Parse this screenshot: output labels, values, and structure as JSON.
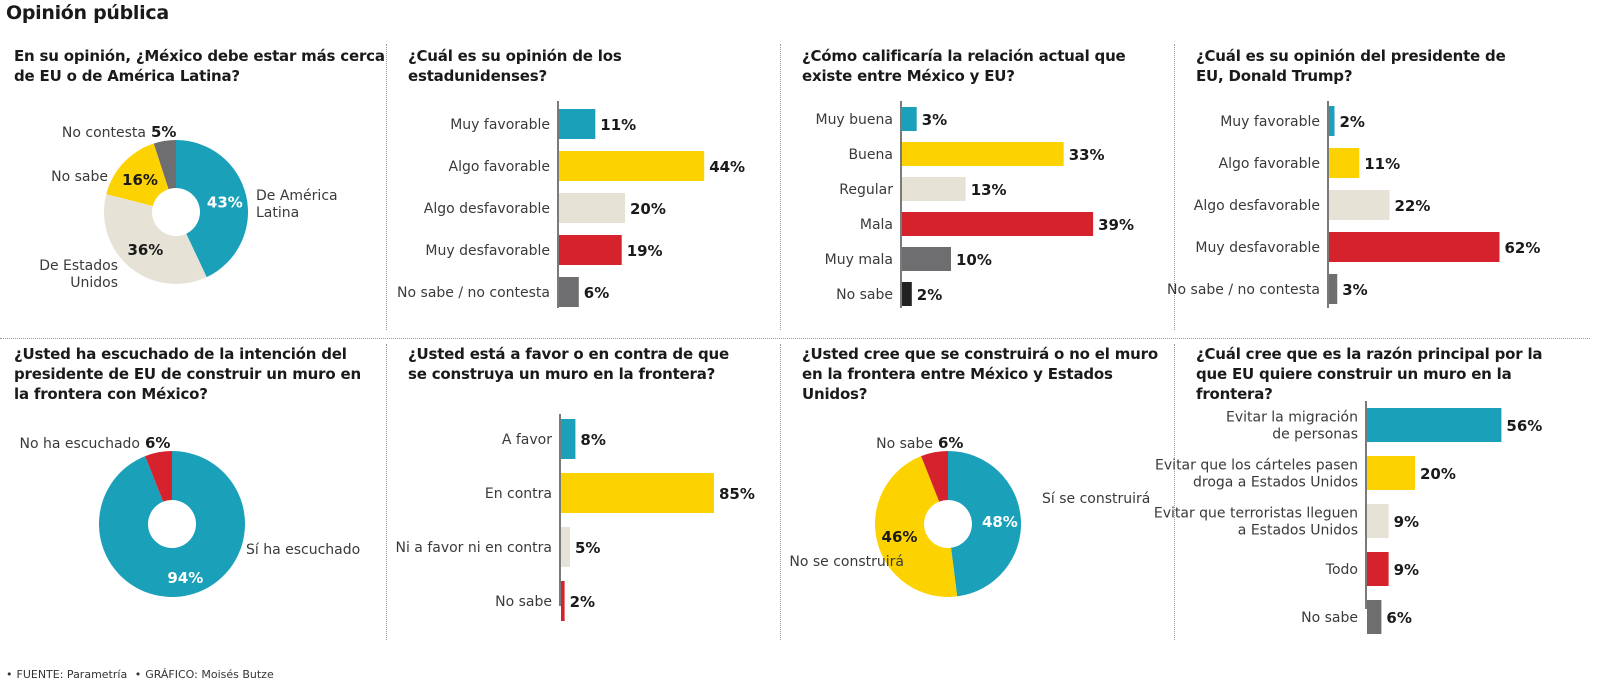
{
  "title": "Opinión pública",
  "footer": {
    "source": "FUENTE: Parametría",
    "graphic": "GRÁFICO: Moisés Butze"
  },
  "colors": {
    "teal": "#1aa0b8",
    "yellow": "#fcd300",
    "beige": "#e6e3d6",
    "red": "#d5222c",
    "gray": "#6e6e70",
    "black": "#222222"
  },
  "chart_data": [
    {
      "id": "p1",
      "type": "pie",
      "title": "En su opinión, ¿México debe estar más cerca de EU o de América Latina?",
      "slices": [
        {
          "label": "De América Latina",
          "value": 43,
          "display": "43%",
          "color": "#1aa0b8"
        },
        {
          "label": "De Estados Unidos",
          "value": 36,
          "display": "36%",
          "color": "#e6e3d6"
        },
        {
          "label": "No sabe",
          "value": 16,
          "display": "16%",
          "color": "#fcd300"
        },
        {
          "label": "No contesta",
          "value": 5,
          "display": "5%",
          "color": "#6e6e70"
        }
      ]
    },
    {
      "id": "p2",
      "type": "bar",
      "title": "¿Cuál es su opinión de los estadunidenses?",
      "categories": [
        "Muy favorable",
        "Algo favorable",
        "Algo desfavorable",
        "Muy desfavorable",
        "No sabe / no contesta"
      ],
      "values": [
        11,
        44,
        20,
        19,
        6
      ],
      "display": [
        "11%",
        "44%",
        "20%",
        "19%",
        "6%"
      ],
      "colors": [
        "#1aa0b8",
        "#fcd300",
        "#e6e3d6",
        "#d5222c",
        "#6e6e70"
      ]
    },
    {
      "id": "p3",
      "type": "bar",
      "title": "¿Cómo calificaría la relación actual que existe entre México y EU?",
      "categories": [
        "Muy buena",
        "Buena",
        "Regular",
        "Mala",
        "Muy mala",
        "No sabe"
      ],
      "values": [
        3,
        33,
        13,
        39,
        10,
        2
      ],
      "display": [
        "3%",
        "33%",
        "13%",
        "39%",
        "10%",
        "2%"
      ],
      "colors": [
        "#1aa0b8",
        "#fcd300",
        "#e6e3d6",
        "#d5222c",
        "#6e6e70",
        "#222222"
      ]
    },
    {
      "id": "p4",
      "type": "bar",
      "title": "¿Cuál es su opinión del presidente de EU, Donald Trump?",
      "categories": [
        "Muy favorable",
        "Algo favorable",
        "Algo desfavorable",
        "Muy desfavorable",
        "No sabe / no contesta"
      ],
      "values": [
        2,
        11,
        22,
        62,
        3
      ],
      "display": [
        "2%",
        "11%",
        "22%",
        "62%",
        "3%"
      ],
      "colors": [
        "#1aa0b8",
        "#fcd300",
        "#e6e3d6",
        "#d5222c",
        "#6e6e70"
      ]
    },
    {
      "id": "p5",
      "type": "pie",
      "title": "¿Usted ha escuchado de la intención del presidente de EU de construir un muro en la frontera con México?",
      "slices": [
        {
          "label": "Sí ha escuchado",
          "value": 94,
          "display": "94%",
          "color": "#1aa0b8"
        },
        {
          "label": "No ha escuchado",
          "value": 6,
          "display": "6%",
          "color": "#d5222c"
        }
      ]
    },
    {
      "id": "p6",
      "type": "bar",
      "title": "¿Usted está a favor o en contra de que se construya un muro en la frontera?",
      "categories": [
        "A favor",
        "En contra",
        "Ni a favor ni en contra",
        "No sabe"
      ],
      "values": [
        8,
        85,
        5,
        2
      ],
      "display": [
        "8%",
        "85%",
        "5%",
        "2%"
      ],
      "colors": [
        "#1aa0b8",
        "#fcd300",
        "#e6e3d6",
        "#d5222c"
      ]
    },
    {
      "id": "p7",
      "type": "pie",
      "title": "¿Usted cree que se construirá o no el muro en la frontera entre México y Estados Unidos?",
      "slices": [
        {
          "label": "Sí se construirá",
          "value": 48,
          "display": "48%",
          "color": "#1aa0b8"
        },
        {
          "label": "No se construirá",
          "value": 46,
          "display": "46%",
          "color": "#fcd300"
        },
        {
          "label": "No sabe",
          "value": 6,
          "display": "6%",
          "color": "#d5222c"
        }
      ]
    },
    {
      "id": "p8",
      "type": "bar",
      "title": "¿Cuál cree que es la razón principal por la que EU quiere construir un muro en la frontera?",
      "categories": [
        "Evitar la migración de personas",
        "Evitar que los cárteles pasen droga a Estados Unidos",
        "Evitar que terroristas lleguen a Estados Unidos",
        "Todo",
        "No sabe"
      ],
      "category_lines": [
        [
          "Evitar la migración",
          "de personas"
        ],
        [
          "Evitar que los cárteles pasen",
          "droga a Estados Unidos"
        ],
        [
          "Evitar que terroristas lleguen",
          "a Estados Unidos"
        ],
        [
          "Todo"
        ],
        [
          "No sabe"
        ]
      ],
      "values": [
        56,
        20,
        9,
        9,
        6
      ],
      "display": [
        "56%",
        "20%",
        "9%",
        "9%",
        "6%"
      ],
      "colors": [
        "#1aa0b8",
        "#fcd300",
        "#e6e3d6",
        "#d5222c",
        "#6e6e70"
      ]
    }
  ]
}
